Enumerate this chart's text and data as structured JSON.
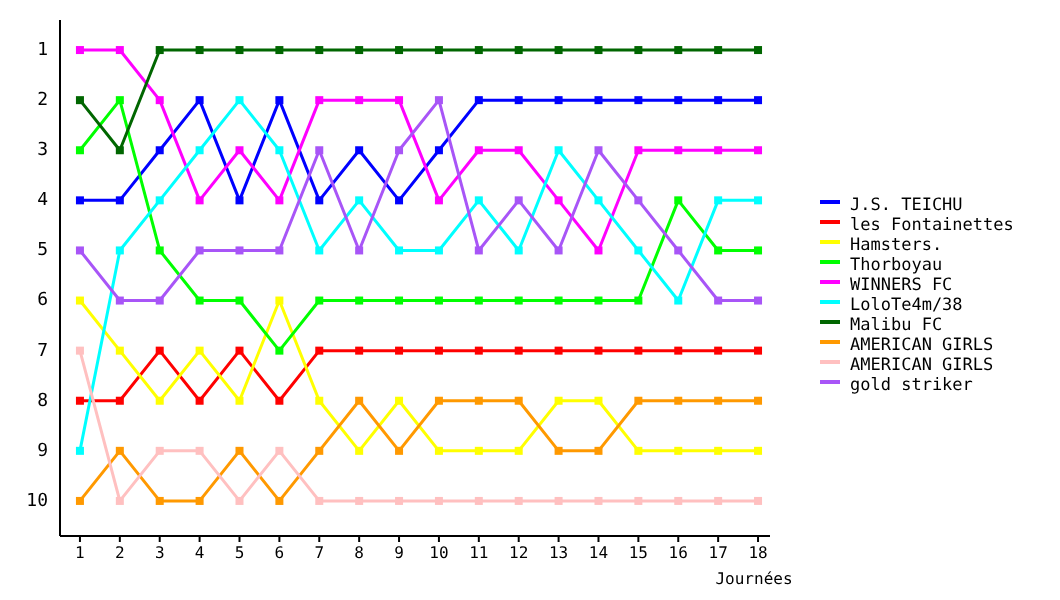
{
  "chart_data": {
    "type": "line",
    "xlabel": "Journées",
    "x": [
      1,
      2,
      3,
      4,
      5,
      6,
      7,
      8,
      9,
      10,
      11,
      12,
      13,
      14,
      15,
      16,
      17,
      18
    ],
    "xlim": [
      0.5,
      18.3
    ],
    "xticks": [
      1,
      2,
      3,
      4,
      5,
      6,
      7,
      8,
      9,
      10,
      11,
      12,
      13,
      14,
      15,
      16,
      17,
      18
    ],
    "ylim": [
      10.7,
      0.4
    ],
    "yticks": [
      1,
      2,
      3,
      4,
      5,
      6,
      7,
      8,
      9,
      10
    ],
    "marker": "square",
    "legend": "right",
    "grid": false,
    "series": [
      {
        "name": "J.S. TEICHU",
        "color": "#0000ff",
        "values": [
          4,
          4,
          3,
          2,
          4,
          2,
          4,
          3,
          4,
          3,
          2,
          2,
          2,
          2,
          2,
          2,
          2,
          2
        ]
      },
      {
        "name": "les Fontainettes",
        "color": "#ff0000",
        "values": [
          8,
          8,
          7,
          8,
          7,
          8,
          7,
          7,
          7,
          7,
          7,
          7,
          7,
          7,
          7,
          7,
          7,
          7
        ]
      },
      {
        "name": "Hamsters.",
        "color": "#ffff00",
        "values": [
          6,
          7,
          8,
          7,
          8,
          6,
          8,
          9,
          8,
          9,
          9,
          9,
          8,
          8,
          9,
          9,
          9,
          9
        ]
      },
      {
        "name": "Thorboyau",
        "color": "#00ff00",
        "values": [
          3,
          2,
          5,
          6,
          6,
          7,
          6,
          6,
          6,
          6,
          6,
          6,
          6,
          6,
          6,
          4,
          5,
          5
        ]
      },
      {
        "name": "WINNERS FC",
        "color": "#ff00ff",
        "values": [
          1,
          1,
          2,
          4,
          3,
          4,
          2,
          2,
          2,
          4,
          3,
          3,
          4,
          5,
          3,
          3,
          3,
          3
        ]
      },
      {
        "name": "LoloTe4m/38",
        "color": "#00ffff",
        "values": [
          9,
          5,
          4,
          3,
          2,
          3,
          5,
          4,
          5,
          5,
          4,
          5,
          3,
          4,
          5,
          6,
          4,
          4
        ]
      },
      {
        "name": "Malibu FC",
        "color": "#006600",
        "values": [
          2,
          3,
          1,
          1,
          1,
          1,
          1,
          1,
          1,
          1,
          1,
          1,
          1,
          1,
          1,
          1,
          1,
          1
        ]
      },
      {
        "name": "AMERICAN GIRLS",
        "color": "#ff9900",
        "values": [
          10,
          9,
          10,
          10,
          9,
          10,
          9,
          8,
          9,
          8,
          8,
          8,
          9,
          9,
          8,
          8,
          8,
          8
        ]
      },
      {
        "name": "AMERICAN GIRLS",
        "color": "#ffc0c0",
        "values": [
          7,
          10,
          9,
          9,
          10,
          9,
          10,
          10,
          10,
          10,
          10,
          10,
          10,
          10,
          10,
          10,
          10,
          10
        ]
      },
      {
        "name": "gold striker",
        "color": "#a855f7",
        "values": [
          5,
          6,
          6,
          5,
          5,
          5,
          3,
          5,
          3,
          2,
          5,
          4,
          5,
          3,
          4,
          5,
          6,
          6
        ]
      }
    ]
  }
}
